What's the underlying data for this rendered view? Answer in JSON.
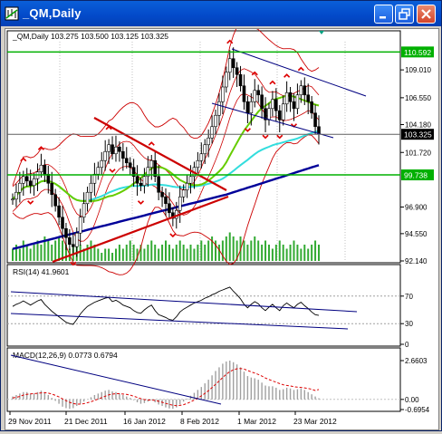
{
  "window": {
    "title": "_QM,Daily",
    "buttons": [
      "minimize",
      "restore",
      "close"
    ],
    "title_bar_color": "#0349c9"
  },
  "main_chart": {
    "header": "_QM,Daily  103.275 103.500 103.125 103.325",
    "price_ticks": [
      {
        "label": "109.010",
        "value": 109.01
      },
      {
        "label": "106.550",
        "value": 106.55
      },
      {
        "label": "104.180",
        "value": 104.18
      },
      {
        "label": "101.720",
        "value": 101.72
      },
      {
        "label": "96.900",
        "value": 96.9
      },
      {
        "label": "94.550",
        "value": 94.55
      },
      {
        "label": "92.140",
        "value": 92.14
      }
    ],
    "markers": [
      {
        "label": "110.592",
        "value": 110.592,
        "color": "#00b000"
      },
      {
        "label": "103.325",
        "value": 103.325,
        "color": "#000000"
      },
      {
        "label": "99.738",
        "value": 99.738,
        "color": "#00b000"
      }
    ]
  },
  "rsi_panel": {
    "header": "RSI(14) 41.9601",
    "ticks": [
      {
        "label": "70",
        "value": 70
      },
      {
        "label": "30",
        "value": 30
      },
      {
        "label": "0",
        "value": 0
      }
    ]
  },
  "macd_panel": {
    "header": "MACD(12,26,9) 0.0773 0.6794",
    "ticks": [
      {
        "label": "2.6603",
        "value": 2.6603
      },
      {
        "label": "0.00",
        "value": 0.0
      },
      {
        "label": "-0.6954",
        "value": -0.6954
      }
    ]
  },
  "x_axis": {
    "labels": [
      "29 Nov 2011",
      "21 Dec 2011",
      "16 Jan 2012",
      "8 Feb 2012",
      "1 Mar 2012",
      "23 Mar 2012"
    ]
  },
  "chart_data": {
    "type": "candlestick",
    "symbol": "_QM",
    "timeframe": "Daily",
    "last_bar": {
      "open": 103.275,
      "high": 103.5,
      "low": 103.125,
      "close": 103.325
    },
    "closes": [
      97.6,
      98.2,
      99.0,
      99.6,
      99.2,
      98.8,
      99.4,
      100.0,
      100.6,
      99.8,
      99.0,
      98.0,
      97.0,
      96.0,
      95.0,
      94.2,
      93.6,
      93.4,
      94.6,
      96.0,
      97.2,
      98.2,
      99.0,
      99.8,
      100.4,
      101.0,
      101.8,
      102.4,
      101.6,
      102.2,
      101.8,
      101.2,
      100.8,
      100.4,
      99.6,
      99.0,
      98.8,
      99.6,
      100.4,
      101.0,
      99.6,
      98.2,
      97.8,
      97.2,
      96.4,
      95.9,
      96.6,
      97.8,
      98.4,
      99.0,
      99.6,
      100.4,
      101.0,
      101.6,
      102.4,
      103.0,
      104.0,
      105.0,
      106.2,
      107.5,
      108.8,
      110.0,
      109.2,
      108.6,
      107.6,
      106.2,
      105.2,
      106.2,
      107.2,
      106.8,
      105.6,
      104.6,
      105.6,
      106.4,
      105.4,
      104.6,
      106.0,
      107.0,
      106.2,
      105.6,
      106.8,
      107.6,
      106.8,
      106.2,
      105.2,
      104.0,
      103.325
    ],
    "volume": [
      3,
      4,
      3,
      5,
      4,
      3,
      4,
      5,
      4,
      6,
      5,
      4,
      5,
      6,
      5,
      4,
      3,
      4,
      5,
      4,
      3,
      4,
      5,
      4,
      3,
      2,
      3,
      3,
      2,
      3,
      4,
      3,
      4,
      5,
      4,
      3,
      4,
      3,
      4,
      5,
      4,
      3,
      4,
      5,
      4,
      3,
      4,
      5,
      4,
      3,
      4,
      3,
      4,
      5,
      4,
      5,
      6,
      5,
      4,
      5,
      6,
      7,
      6,
      5,
      6,
      5,
      4,
      5,
      6,
      5,
      4,
      5,
      4,
      3,
      4,
      5,
      4,
      3,
      4,
      5,
      4,
      3,
      4,
      3,
      4,
      5,
      4
    ],
    "rsi": [
      55,
      58,
      60,
      63,
      60,
      57,
      60,
      63,
      65,
      58,
      53,
      48,
      44,
      40,
      36,
      32,
      30,
      29,
      36,
      44,
      50,
      55,
      58,
      61,
      63,
      65,
      67,
      68,
      62,
      64,
      61,
      57,
      55,
      53,
      49,
      46,
      45,
      50,
      54,
      57,
      49,
      43,
      41,
      39,
      36,
      35,
      40,
      47,
      51,
      54,
      57,
      60,
      62,
      64,
      67,
      69,
      72,
      74,
      77,
      79,
      81,
      83,
      77,
      72,
      66,
      58,
      53,
      58,
      62,
      59,
      53,
      49,
      54,
      58,
      53,
      49,
      56,
      60,
      56,
      53,
      58,
      61,
      56,
      52,
      47,
      43,
      41.9601
    ],
    "macd_main": [
      0.2,
      0.3,
      0.4,
      0.5,
      0.5,
      0.4,
      0.4,
      0.5,
      0.6,
      0.5,
      0.3,
      0.1,
      -0.1,
      -0.3,
      -0.5,
      -0.6,
      -0.65,
      -0.6,
      -0.45,
      -0.3,
      -0.15,
      0.0,
      0.15,
      0.3,
      0.4,
      0.5,
      0.6,
      0.65,
      0.55,
      0.5,
      0.4,
      0.3,
      0.2,
      0.1,
      -0.05,
      -0.2,
      -0.3,
      -0.25,
      -0.15,
      -0.05,
      -0.2,
      -0.35,
      -0.45,
      -0.55,
      -0.62,
      -0.65,
      -0.55,
      -0.35,
      -0.15,
      0.05,
      0.25,
      0.45,
      0.65,
      0.85,
      1.1,
      1.35,
      1.65,
      1.95,
      2.2,
      2.45,
      2.6,
      2.66,
      2.55,
      2.4,
      2.2,
      1.9,
      1.6,
      1.5,
      1.45,
      1.35,
      1.15,
      0.95,
      0.9,
      0.9,
      0.8,
      0.65,
      0.7,
      0.8,
      0.75,
      0.65,
      0.7,
      0.75,
      0.65,
      0.5,
      0.35,
      0.2,
      0.0773
    ],
    "macd_signal": [
      0.1,
      0.15,
      0.2,
      0.3,
      0.35,
      0.38,
      0.4,
      0.42,
      0.45,
      0.46,
      0.43,
      0.37,
      0.28,
      0.17,
      0.04,
      -0.09,
      -0.2,
      -0.28,
      -0.32,
      -0.32,
      -0.29,
      -0.23,
      -0.16,
      -0.07,
      0.02,
      0.12,
      0.22,
      0.31,
      0.36,
      0.39,
      0.39,
      0.37,
      0.34,
      0.29,
      0.22,
      0.14,
      0.05,
      -0.01,
      -0.04,
      -0.04,
      -0.07,
      -0.13,
      -0.2,
      -0.27,
      -0.34,
      -0.4,
      -0.43,
      -0.41,
      -0.36,
      -0.28,
      -0.17,
      -0.05,
      0.09,
      0.24,
      0.41,
      0.6,
      0.81,
      1.04,
      1.27,
      1.5,
      1.72,
      1.9,
      2.03,
      2.1,
      2.12,
      2.08,
      1.98,
      1.89,
      1.8,
      1.71,
      1.6,
      1.47,
      1.36,
      1.27,
      1.18,
      1.08,
      1.0,
      0.96,
      0.92,
      0.87,
      0.84,
      0.82,
      0.79,
      0.75,
      0.69,
      0.61,
      0.6794
    ]
  }
}
